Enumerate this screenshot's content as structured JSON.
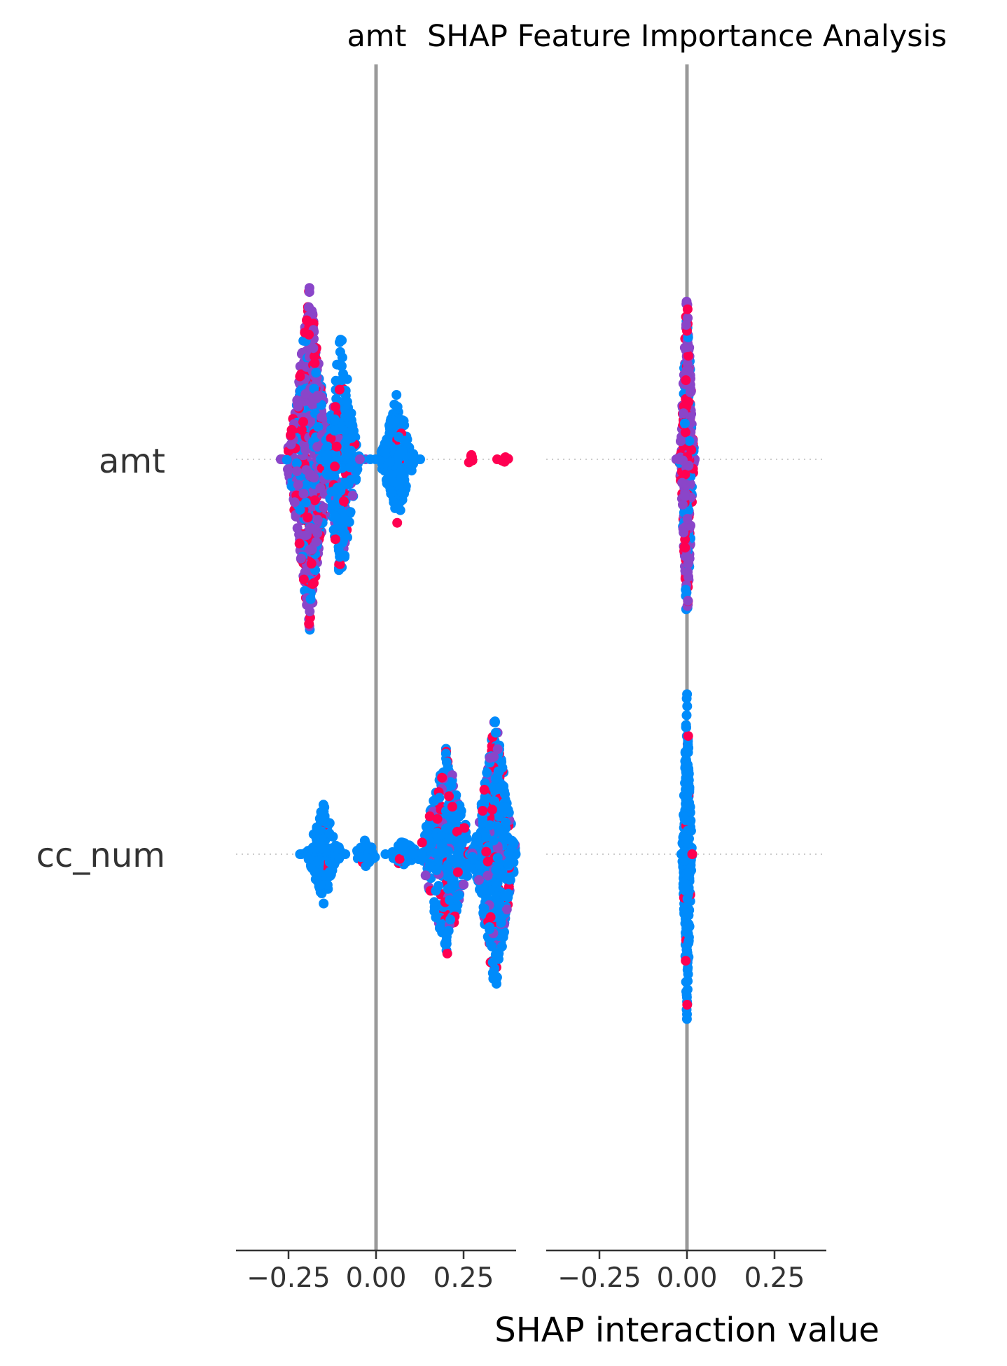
{
  "chart_data": {
    "type": "scatter",
    "kind": "shap_interaction_summary",
    "title": "SHAP Feature Importance Analysis",
    "xlabel": "SHAP interaction value",
    "features": [
      "amt",
      "cc_num"
    ],
    "xticks": [
      -0.25,
      0.0,
      0.25
    ],
    "xtick_labels": [
      "−0.25",
      "0.00",
      "0.25"
    ],
    "xlim": [
      -0.4,
      0.4
    ],
    "grid": false,
    "colormap": {
      "low": "#008bfb",
      "mid": "#8a45c9",
      "high": "#ff0051"
    },
    "panels": [
      {
        "column_title": "amt",
        "interaction_with": "amt",
        "rows": [
          {
            "feature": "amt",
            "clusters": [
              {
                "center": -0.19,
                "spread": 0.028,
                "max_height": 0.44,
                "count": 700,
                "color_mix": "purple"
              },
              {
                "center": -0.1,
                "spread": 0.022,
                "max_height": 0.33,
                "count": 280,
                "color_mix": "blue_red"
              },
              {
                "center": 0.06,
                "spread": 0.022,
                "max_height": 0.17,
                "count": 180,
                "color_mix": "blue"
              },
              {
                "center": 0.27,
                "spread": 0.004,
                "max_height": 0.02,
                "count": 6,
                "color_mix": "red"
              },
              {
                "center": 0.37,
                "spread": 0.008,
                "max_height": 0.01,
                "count": 6,
                "color_mix": "red"
              }
            ]
          },
          {
            "feature": "cc_num",
            "clusters": [
              {
                "center": -0.15,
                "spread": 0.022,
                "max_height": 0.13,
                "count": 140,
                "color_mix": "blue"
              },
              {
                "center": -0.03,
                "spread": 0.015,
                "max_height": 0.04,
                "count": 40,
                "color_mix": "blue"
              },
              {
                "center": 0.08,
                "spread": 0.02,
                "max_height": 0.04,
                "count": 50,
                "color_mix": "blue"
              },
              {
                "center": 0.2,
                "spread": 0.035,
                "max_height": 0.27,
                "count": 350,
                "color_mix": "blue_red"
              },
              {
                "center": 0.34,
                "spread": 0.028,
                "max_height": 0.36,
                "count": 550,
                "color_mix": "blue_red"
              }
            ]
          }
        ]
      },
      {
        "column_title": "",
        "interaction_with": "cc_num",
        "rows": [
          {
            "feature": "amt",
            "clusters": [
              {
                "center": 0.0,
                "spread": 0.009,
                "max_height": 0.44,
                "count": 380,
                "color_mix": "purple"
              }
            ]
          },
          {
            "feature": "cc_num",
            "clusters": [
              {
                "center": 0.0,
                "spread": 0.006,
                "max_height": 0.43,
                "count": 300,
                "color_mix": "blue"
              }
            ]
          }
        ]
      }
    ]
  }
}
